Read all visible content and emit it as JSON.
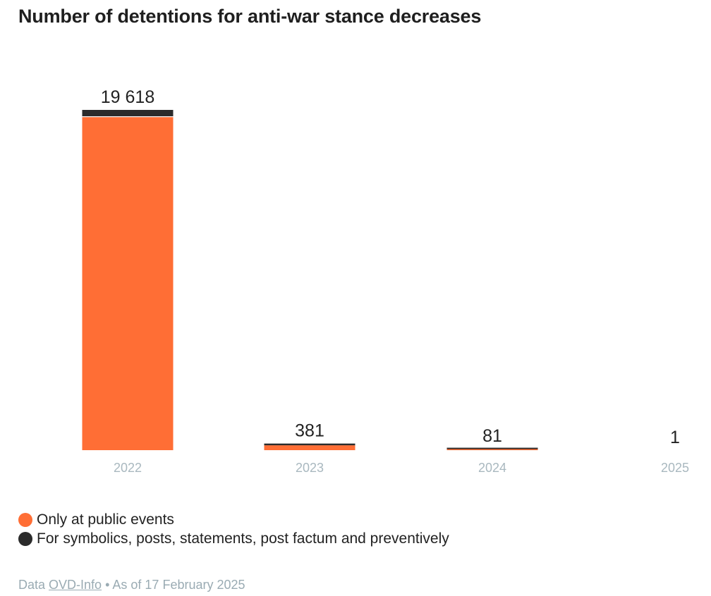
{
  "chart_data": {
    "type": "bar",
    "stacked": true,
    "title": "Number of detentions for anti-war stance decreases",
    "categories": [
      "2022",
      "2023",
      "2024",
      "2025"
    ],
    "totals": [
      "19 618",
      "381",
      "81",
      "1"
    ],
    "series": [
      {
        "name": "Only at public events",
        "color": "#ff6e35",
        "values": [
          19210,
          281,
          1,
          0
        ]
      },
      {
        "name": "For symbolics, posts, statements, post factum and preventively",
        "color": "#2b2b2b",
        "values": [
          408,
          100,
          80,
          1
        ]
      }
    ],
    "ylim": [
      0,
      19618
    ],
    "grid": false,
    "legend_position": "bottom-left"
  },
  "source": {
    "prefix": "Data",
    "link_text": "OVD-Info",
    "suffix": "• As of 17 February 2025"
  }
}
